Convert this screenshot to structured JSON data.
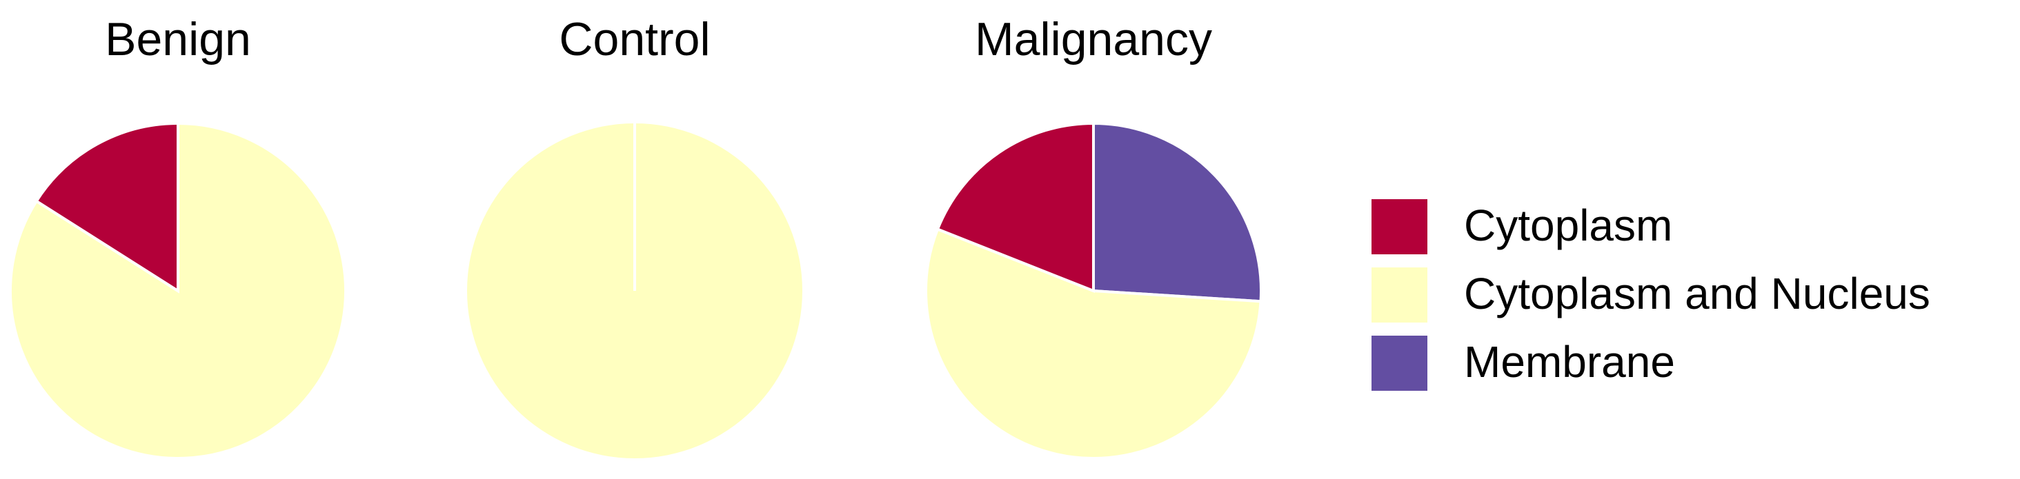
{
  "chart_data": [
    {
      "type": "pie",
      "title": "Benign",
      "categories": [
        "Cytoplasm",
        "Cytoplasm and Nucleus",
        "Membrane"
      ],
      "colors": [
        "#b30039",
        "#ffffc0",
        "#634ea2"
      ],
      "values": [
        16,
        84,
        0
      ]
    },
    {
      "type": "pie",
      "title": "Control",
      "categories": [
        "Cytoplasm",
        "Cytoplasm and Nucleus",
        "Membrane"
      ],
      "colors": [
        "#b30039",
        "#ffffc0",
        "#634ea2"
      ],
      "values": [
        0,
        100,
        0
      ]
    },
    {
      "type": "pie",
      "title": "Malignancy",
      "categories": [
        "Cytoplasm",
        "Cytoplasm and Nucleus",
        "Membrane"
      ],
      "colors": [
        "#b30039",
        "#ffffc0",
        "#634ea2"
      ],
      "values": [
        19,
        55,
        26
      ]
    }
  ]
}
